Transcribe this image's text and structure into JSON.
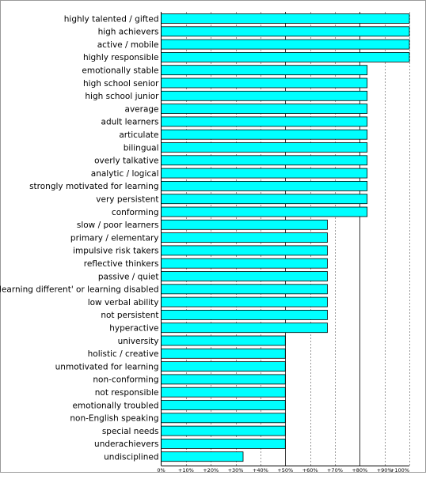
{
  "chart_data": {
    "type": "bar",
    "orientation": "horizontal",
    "categories": [
      "highly talented / gifted",
      "high achievers",
      "active / mobile",
      "highly responsible",
      "emotionally stable",
      "high school senior",
      "high school junior",
      "average",
      "adult learners",
      "articulate",
      "bilingual",
      "overly talkative",
      "analytic / logical",
      "strongly motivated for learning",
      "very persistent",
      "conforming",
      "slow / poor learners",
      "primary / elementary",
      "impulsive risk takers",
      "reflective thinkers",
      "passive / quiet",
      "learning different' or learning disabled",
      "low verbal ability",
      "not persistent",
      "hyperactive",
      "university",
      "holistic / creative",
      "unmotivated for learning",
      "non-conforming",
      "not responsible",
      "emotionally troubled",
      "non-English speaking",
      "special needs",
      "underachievers",
      "undisciplined"
    ],
    "values": [
      100,
      100,
      100,
      100,
      83,
      83,
      83,
      83,
      83,
      83,
      83,
      83,
      83,
      83,
      83,
      83,
      67,
      67,
      67,
      67,
      67,
      67,
      67,
      67,
      67,
      50,
      50,
      50,
      50,
      50,
      50,
      50,
      50,
      50,
      33
    ],
    "xlim": [
      0,
      100
    ],
    "xticks": [
      0,
      10,
      20,
      30,
      40,
      50,
      60,
      70,
      80,
      90,
      100
    ],
    "xtick_labels": [
      "0%",
      "+10%",
      "+20%",
      "+30%",
      "+40%",
      "+50%",
      "+60%",
      "+70%",
      "+80%",
      "+90%",
      "+100%"
    ],
    "major_gridlines": [
      50,
      80
    ],
    "grid": "vertical dotted",
    "bar_color": "#00ffff",
    "bar_edge_color": "#000000",
    "major_grid_color": "#333333",
    "minor_grid_color": "#999999",
    "title": "",
    "xlabel": "",
    "ylabel": ""
  }
}
